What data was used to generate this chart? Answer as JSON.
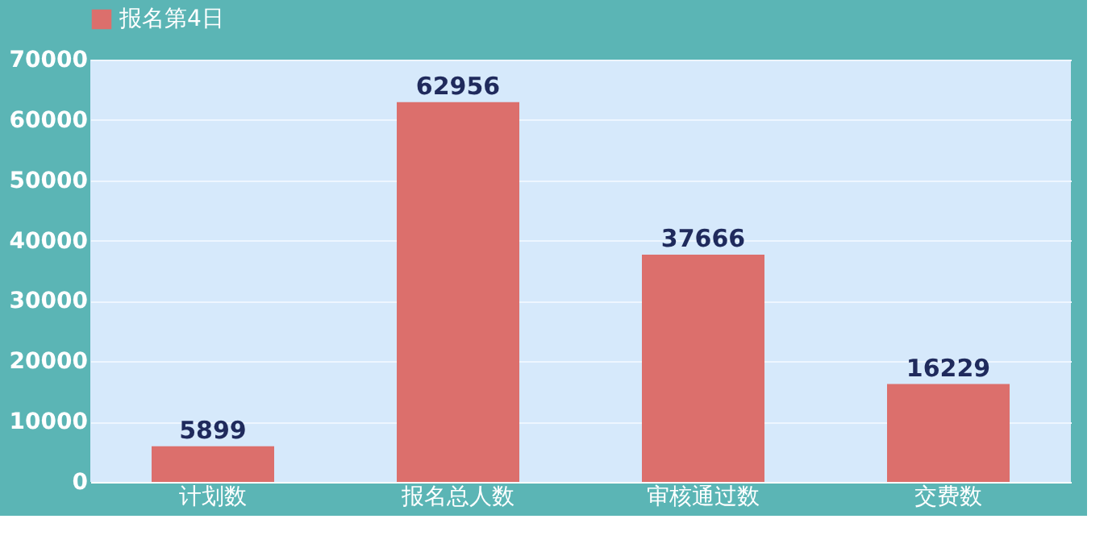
{
  "chart_data": {
    "type": "bar",
    "categories": [
      "计划数",
      "报名总人数",
      "审核通过数",
      "交费数"
    ],
    "series": [
      {
        "name": "报名第4日",
        "color": "#dc6f6c",
        "values": [
          5899,
          62956,
          37666,
          16229
        ]
      }
    ],
    "ylim": [
      0,
      70000
    ],
    "yticks": [
      0,
      10000,
      20000,
      30000,
      40000,
      50000,
      60000,
      70000
    ],
    "grid": "y",
    "legend": "top",
    "data_labels": true
  }
}
